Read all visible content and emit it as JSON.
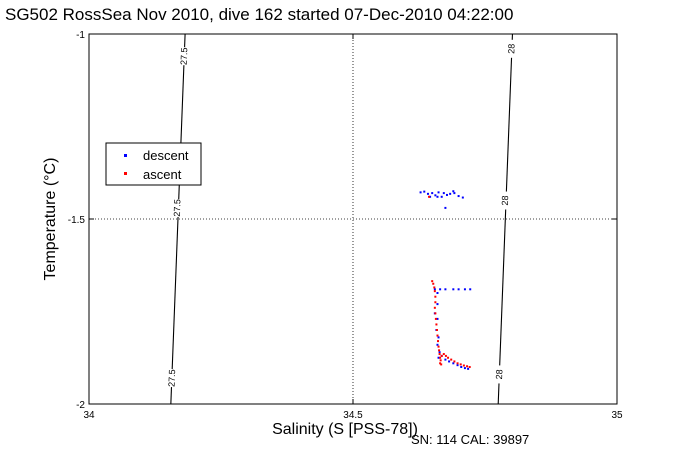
{
  "chart_data": {
    "type": "scatter",
    "title": "SG502 RossSea Nov 2010, dive 162 started 07-Dec-2010 04:22:00",
    "xlabel": "Salinity (S [PSS-78])",
    "ylabel": "Temperature (°C)",
    "xlim": [
      34,
      35
    ],
    "ylim": [
      -2,
      -1
    ],
    "xticks": [
      "34",
      "34.5",
      "35"
    ],
    "yticks": [
      "-1",
      "-1.5",
      "-2"
    ],
    "grid": "dotted at 34.5 and -1.5",
    "legend_position": "left",
    "contours": [
      {
        "label": "27.5",
        "points": [
          [
            34.182,
            -1
          ],
          [
            34.155,
            -2
          ]
        ],
        "label_positions": [
          [
            34.18,
            -1.06
          ],
          [
            34.167,
            -1.47
          ],
          [
            34.157,
            -1.93
          ]
        ]
      },
      {
        "label": "28",
        "points": [
          [
            34.802,
            -1
          ],
          [
            34.775,
            -2
          ]
        ],
        "label_positions": [
          [
            34.8,
            -1.04
          ],
          [
            34.788,
            -1.45
          ],
          [
            34.777,
            -1.92
          ]
        ]
      }
    ],
    "series": [
      {
        "name": "descent",
        "color": "#0000ff",
        "points": [
          [
            34.628,
            -1.428
          ],
          [
            34.635,
            -1.426
          ],
          [
            34.642,
            -1.432
          ],
          [
            34.65,
            -1.43
          ],
          [
            34.656,
            -1.436
          ],
          [
            34.662,
            -1.428
          ],
          [
            34.668,
            -1.44
          ],
          [
            34.672,
            -1.43
          ],
          [
            34.678,
            -1.435
          ],
          [
            34.684,
            -1.432
          ],
          [
            34.692,
            -1.43
          ],
          [
            34.7,
            -1.438
          ],
          [
            34.708,
            -1.442
          ],
          [
            34.675,
            -1.47
          ],
          [
            34.66,
            -1.44
          ],
          [
            34.646,
            -1.44
          ],
          [
            34.69,
            -1.425
          ],
          [
            34.655,
            -1.69
          ],
          [
            34.665,
            -1.69
          ],
          [
            34.675,
            -1.69
          ],
          [
            34.69,
            -1.69
          ],
          [
            34.7,
            -1.69
          ],
          [
            34.712,
            -1.69
          ],
          [
            34.722,
            -1.69
          ],
          [
            34.66,
            -1.7
          ],
          [
            34.66,
            -1.73
          ],
          [
            34.655,
            -1.755
          ],
          [
            34.66,
            -1.77
          ],
          [
            34.658,
            -1.8
          ],
          [
            34.662,
            -1.82
          ],
          [
            34.66,
            -1.84
          ],
          [
            34.664,
            -1.86
          ],
          [
            34.662,
            -1.875
          ],
          [
            34.668,
            -1.87
          ],
          [
            34.675,
            -1.88
          ],
          [
            34.682,
            -1.885
          ],
          [
            34.69,
            -1.89
          ],
          [
            34.698,
            -1.895
          ],
          [
            34.705,
            -1.9
          ],
          [
            34.712,
            -1.903
          ],
          [
            34.718,
            -1.905
          ]
        ]
      },
      {
        "name": "ascent",
        "color": "#ff0000",
        "points": [
          [
            34.644,
            -1.44
          ],
          [
            34.65,
            -1.668
          ],
          [
            34.652,
            -1.675
          ],
          [
            34.654,
            -1.685
          ],
          [
            34.655,
            -1.695
          ],
          [
            34.656,
            -1.71
          ],
          [
            34.656,
            -1.725
          ],
          [
            34.655,
            -1.74
          ],
          [
            34.656,
            -1.755
          ],
          [
            34.657,
            -1.77
          ],
          [
            34.658,
            -1.785
          ],
          [
            34.659,
            -1.8
          ],
          [
            34.66,
            -1.815
          ],
          [
            34.661,
            -1.83
          ],
          [
            34.662,
            -1.845
          ],
          [
            34.663,
            -1.855
          ],
          [
            34.664,
            -1.865
          ],
          [
            34.665,
            -1.875
          ],
          [
            34.666,
            -1.882
          ],
          [
            34.668,
            -1.87
          ],
          [
            34.672,
            -1.865
          ],
          [
            34.676,
            -1.87
          ],
          [
            34.68,
            -1.875
          ],
          [
            34.686,
            -1.88
          ],
          [
            34.692,
            -1.885
          ],
          [
            34.698,
            -1.89
          ],
          [
            34.704,
            -1.893
          ],
          [
            34.71,
            -1.896
          ],
          [
            34.716,
            -1.898
          ],
          [
            34.721,
            -1.9
          ],
          [
            34.665,
            -1.89
          ],
          [
            34.667,
            -1.893
          ]
        ]
      }
    ]
  },
  "footer": {
    "sn": "SN: 114  CAL: 39897"
  }
}
